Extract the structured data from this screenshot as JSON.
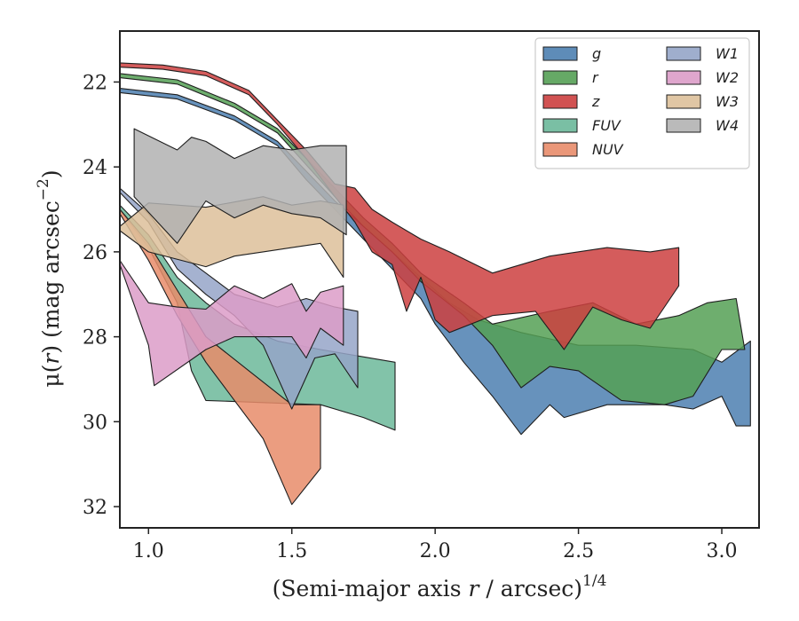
{
  "chart_data": {
    "type": "area",
    "xlabel_main": "(Semi-major axis ",
    "xlabel_var": "r",
    "xlabel_mid": " / arcsec)",
    "xlabel_sup": "1/4",
    "ylabel_main": "μ(",
    "ylabel_var": "r",
    "ylabel_rest": ") (mag arcsec",
    "ylabel_sup": "−2",
    "ylabel_end": ")",
    "xlim": [
      0.9,
      3.13
    ],
    "ylim": [
      32.5,
      20.8
    ],
    "xticks": [
      1.0,
      1.5,
      2.0,
      2.5,
      3.0
    ],
    "xtick_labels": [
      "1.0",
      "1.5",
      "2.0",
      "2.5",
      "3.0"
    ],
    "yticks": [
      22,
      24,
      26,
      28,
      30,
      32
    ],
    "ytick_labels": [
      "22",
      "24",
      "26",
      "28",
      "30",
      "32"
    ],
    "legend_position": "top-right",
    "legend_columns": 2,
    "series": [
      {
        "name": "g",
        "color": "#4c7fb0",
        "upper": [
          [
            0.9,
            22.15
          ],
          [
            1.1,
            22.3
          ],
          [
            1.3,
            22.8
          ],
          [
            1.45,
            23.4
          ],
          [
            1.55,
            24.1
          ],
          [
            1.65,
            24.8
          ],
          [
            1.75,
            25.4
          ],
          [
            1.85,
            26.0
          ],
          [
            1.95,
            26.6
          ],
          [
            2.05,
            27.2
          ],
          [
            2.15,
            27.6
          ],
          [
            2.3,
            27.9
          ],
          [
            2.5,
            28.2
          ],
          [
            2.7,
            28.2
          ],
          [
            2.9,
            28.3
          ],
          [
            3.0,
            28.6
          ],
          [
            3.1,
            28.1
          ]
        ],
        "lower": [
          [
            0.9,
            22.25
          ],
          [
            1.1,
            22.4
          ],
          [
            1.3,
            22.9
          ],
          [
            1.45,
            23.5
          ],
          [
            1.55,
            24.3
          ],
          [
            1.65,
            25.0
          ],
          [
            1.75,
            25.7
          ],
          [
            1.85,
            26.4
          ],
          [
            1.95,
            27.1
          ],
          [
            2.0,
            27.7
          ],
          [
            2.1,
            28.6
          ],
          [
            2.2,
            29.4
          ],
          [
            2.3,
            30.3
          ],
          [
            2.4,
            29.6
          ],
          [
            2.45,
            29.9
          ],
          [
            2.6,
            29.6
          ],
          [
            2.8,
            29.6
          ],
          [
            2.9,
            29.7
          ],
          [
            3.0,
            29.4
          ],
          [
            3.05,
            30.1
          ],
          [
            3.1,
            30.1
          ]
        ]
      },
      {
        "name": "r",
        "color": "#55a055",
        "upper": [
          [
            0.9,
            21.8
          ],
          [
            1.1,
            21.95
          ],
          [
            1.3,
            22.5
          ],
          [
            1.45,
            23.1
          ],
          [
            1.55,
            23.8
          ],
          [
            1.65,
            24.5
          ],
          [
            1.75,
            25.2
          ],
          [
            1.85,
            25.8
          ],
          [
            1.95,
            26.5
          ],
          [
            2.1,
            27.2
          ],
          [
            2.2,
            27.7
          ],
          [
            2.4,
            27.4
          ],
          [
            2.55,
            27.2
          ],
          [
            2.7,
            27.7
          ],
          [
            2.85,
            27.5
          ],
          [
            2.95,
            27.2
          ],
          [
            3.05,
            27.1
          ],
          [
            3.08,
            28.3
          ]
        ],
        "lower": [
          [
            0.9,
            21.9
          ],
          [
            1.1,
            22.05
          ],
          [
            1.3,
            22.6
          ],
          [
            1.45,
            23.2
          ],
          [
            1.55,
            23.95
          ],
          [
            1.65,
            24.7
          ],
          [
            1.75,
            25.4
          ],
          [
            1.85,
            26.0
          ],
          [
            1.95,
            26.7
          ],
          [
            2.1,
            27.5
          ],
          [
            2.2,
            28.2
          ],
          [
            2.3,
            29.2
          ],
          [
            2.4,
            28.7
          ],
          [
            2.5,
            28.8
          ],
          [
            2.65,
            29.5
          ],
          [
            2.8,
            29.6
          ],
          [
            2.9,
            29.4
          ],
          [
            3.0,
            28.3
          ],
          [
            3.08,
            28.3
          ]
        ]
      },
      {
        "name": "z",
        "color": "#cc3f3f",
        "upper": [
          [
            0.9,
            21.55
          ],
          [
            1.05,
            21.6
          ],
          [
            1.2,
            21.75
          ],
          [
            1.35,
            22.2
          ],
          [
            1.45,
            22.9
          ],
          [
            1.55,
            23.6
          ],
          [
            1.65,
            24.4
          ],
          [
            1.72,
            24.5
          ],
          [
            1.78,
            25.0
          ],
          [
            1.85,
            25.3
          ],
          [
            1.95,
            25.7
          ],
          [
            2.05,
            26.0
          ],
          [
            2.2,
            26.5
          ],
          [
            2.4,
            26.1
          ],
          [
            2.6,
            25.9
          ],
          [
            2.75,
            26.0
          ],
          [
            2.85,
            25.9
          ]
        ],
        "lower": [
          [
            0.9,
            21.65
          ],
          [
            1.05,
            21.7
          ],
          [
            1.2,
            21.85
          ],
          [
            1.35,
            22.3
          ],
          [
            1.45,
            23.0
          ],
          [
            1.55,
            23.8
          ],
          [
            1.65,
            24.7
          ],
          [
            1.72,
            25.3
          ],
          [
            1.78,
            26.0
          ],
          [
            1.85,
            26.3
          ],
          [
            1.9,
            27.4
          ],
          [
            1.95,
            26.6
          ],
          [
            2.0,
            27.6
          ],
          [
            2.05,
            27.9
          ],
          [
            2.2,
            27.5
          ],
          [
            2.35,
            27.4
          ],
          [
            2.45,
            28.3
          ],
          [
            2.55,
            27.3
          ],
          [
            2.65,
            27.6
          ],
          [
            2.75,
            27.8
          ],
          [
            2.85,
            26.8
          ]
        ]
      },
      {
        "name": "FUV",
        "color": "#6cb89a",
        "upper": [
          [
            0.9,
            24.9
          ],
          [
            1.0,
            25.6
          ],
          [
            1.1,
            26.6
          ],
          [
            1.2,
            27.2
          ],
          [
            1.3,
            27.7
          ],
          [
            1.45,
            28.1
          ],
          [
            1.6,
            28.3
          ],
          [
            1.86,
            28.6
          ]
        ],
        "lower": [
          [
            0.9,
            25.0
          ],
          [
            1.0,
            25.9
          ],
          [
            1.1,
            27.2
          ],
          [
            1.15,
            28.8
          ],
          [
            1.2,
            29.5
          ],
          [
            1.4,
            29.55
          ],
          [
            1.6,
            29.6
          ],
          [
            1.75,
            29.9
          ],
          [
            1.86,
            30.2
          ]
        ]
      },
      {
        "name": "NUV",
        "color": "#e88c6a",
        "upper": [
          [
            0.9,
            25.0
          ],
          [
            1.0,
            25.8
          ],
          [
            1.1,
            26.9
          ],
          [
            1.2,
            28.0
          ],
          [
            1.35,
            28.8
          ],
          [
            1.5,
            29.6
          ],
          [
            1.6,
            29.6
          ]
        ],
        "lower": [
          [
            0.9,
            25.1
          ],
          [
            1.0,
            26.2
          ],
          [
            1.1,
            27.5
          ],
          [
            1.2,
            28.6
          ],
          [
            1.3,
            29.5
          ],
          [
            1.4,
            30.4
          ],
          [
            1.5,
            31.95
          ],
          [
            1.6,
            31.1
          ]
        ]
      },
      {
        "name": "W1",
        "color": "#95a5c8",
        "upper": [
          [
            0.9,
            24.5
          ],
          [
            1.0,
            25.1
          ],
          [
            1.1,
            26.0
          ],
          [
            1.2,
            26.5
          ],
          [
            1.3,
            27.0
          ],
          [
            1.45,
            27.3
          ],
          [
            1.55,
            27.1
          ],
          [
            1.65,
            27.3
          ],
          [
            1.73,
            27.4
          ]
        ],
        "lower": [
          [
            0.9,
            24.6
          ],
          [
            1.0,
            25.3
          ],
          [
            1.1,
            26.4
          ],
          [
            1.2,
            27.0
          ],
          [
            1.3,
            27.5
          ],
          [
            1.4,
            28.2
          ],
          [
            1.5,
            29.7
          ],
          [
            1.58,
            28.5
          ],
          [
            1.65,
            28.4
          ],
          [
            1.73,
            29.2
          ]
        ]
      },
      {
        "name": "W2",
        "color": "#dc9cc8",
        "upper": [
          [
            0.9,
            26.2
          ],
          [
            1.0,
            27.2
          ],
          [
            1.1,
            27.3
          ],
          [
            1.2,
            27.35
          ],
          [
            1.3,
            26.8
          ],
          [
            1.4,
            27.1
          ],
          [
            1.5,
            26.75
          ],
          [
            1.55,
            27.4
          ],
          [
            1.6,
            26.95
          ],
          [
            1.68,
            26.8
          ]
        ],
        "lower": [
          [
            0.9,
            26.3
          ],
          [
            1.0,
            28.2
          ],
          [
            1.02,
            29.15
          ],
          [
            1.2,
            28.3
          ],
          [
            1.3,
            28.0
          ],
          [
            1.4,
            28.0
          ],
          [
            1.5,
            28.0
          ],
          [
            1.55,
            28.5
          ],
          [
            1.6,
            27.8
          ],
          [
            1.68,
            28.2
          ]
        ]
      },
      {
        "name": "W3",
        "color": "#ddc09a",
        "upper": [
          [
            0.9,
            25.4
          ],
          [
            1.0,
            24.85
          ],
          [
            1.2,
            24.95
          ],
          [
            1.4,
            24.7
          ],
          [
            1.5,
            24.9
          ],
          [
            1.6,
            24.8
          ],
          [
            1.68,
            24.9
          ]
        ],
        "lower": [
          [
            0.9,
            25.5
          ],
          [
            1.0,
            26.0
          ],
          [
            1.2,
            26.35
          ],
          [
            1.3,
            26.1
          ],
          [
            1.4,
            26.0
          ],
          [
            1.5,
            25.9
          ],
          [
            1.6,
            25.8
          ],
          [
            1.68,
            26.6
          ]
        ]
      },
      {
        "name": "W4",
        "color": "#b2b2b2",
        "upper": [
          [
            0.95,
            23.1
          ],
          [
            1.1,
            23.6
          ],
          [
            1.15,
            23.3
          ],
          [
            1.2,
            23.4
          ],
          [
            1.3,
            23.8
          ],
          [
            1.4,
            23.5
          ],
          [
            1.5,
            23.6
          ],
          [
            1.6,
            23.5
          ],
          [
            1.69,
            23.5
          ]
        ],
        "lower": [
          [
            0.95,
            24.7
          ],
          [
            1.1,
            25.8
          ],
          [
            1.2,
            24.8
          ],
          [
            1.3,
            25.2
          ],
          [
            1.4,
            24.9
          ],
          [
            1.5,
            25.1
          ],
          [
            1.6,
            25.2
          ],
          [
            1.69,
            25.6
          ]
        ]
      }
    ]
  }
}
